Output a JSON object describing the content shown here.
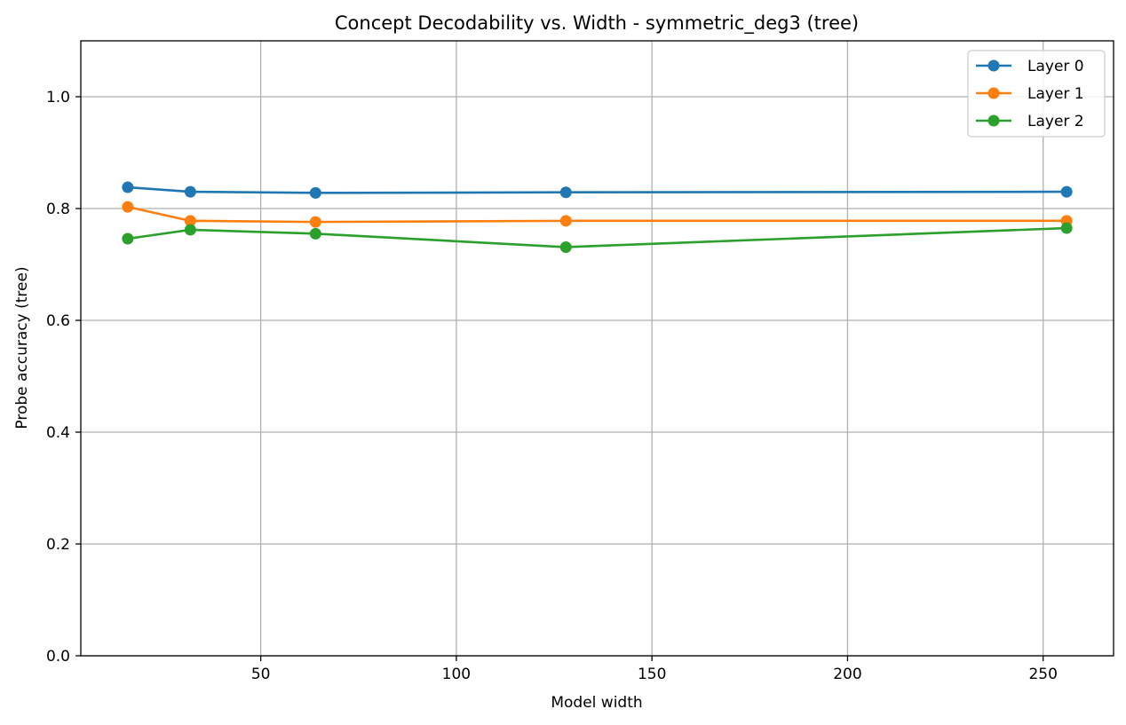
{
  "chart_data": {
    "type": "line",
    "title": "Concept Decodability vs. Width - symmetric_deg3 (tree)",
    "xlabel": "Model width",
    "ylabel": "Probe accuracy (tree)",
    "x": [
      16,
      32,
      64,
      128,
      256
    ],
    "xlim": [
      4,
      268
    ],
    "ylim": [
      0.0,
      1.1
    ],
    "xticks": [
      50,
      100,
      150,
      200,
      250
    ],
    "yticks": [
      0.0,
      0.2,
      0.4,
      0.6,
      0.8,
      1.0
    ],
    "xtick_labels": [
      "50",
      "100",
      "150",
      "200",
      "250"
    ],
    "ytick_labels": [
      "0.0",
      "0.2",
      "0.4",
      "0.6",
      "0.8",
      "1.0"
    ],
    "grid": true,
    "legend_position": "top-right",
    "series": [
      {
        "name": "Layer 0",
        "color": "#1f77b4",
        "values": [
          0.838,
          0.83,
          0.828,
          0.829,
          0.83
        ]
      },
      {
        "name": "Layer 1",
        "color": "#ff7f0e",
        "values": [
          0.803,
          0.778,
          0.776,
          0.778,
          0.778
        ]
      },
      {
        "name": "Layer 2",
        "color": "#2ca02c",
        "values": [
          0.746,
          0.762,
          0.755,
          0.731,
          0.765
        ]
      }
    ]
  }
}
